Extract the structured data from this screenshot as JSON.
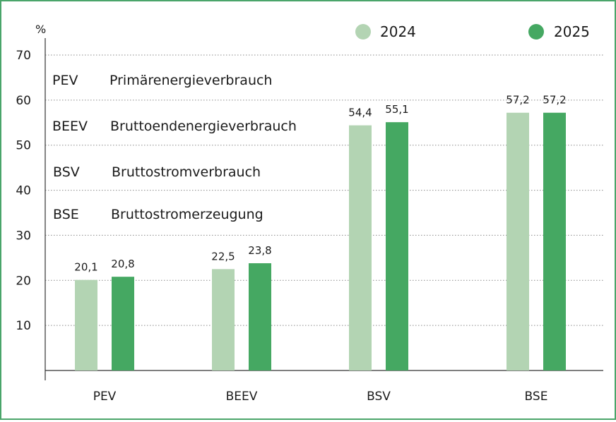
{
  "chart_data": {
    "type": "bar",
    "unit_label": "%",
    "categories": [
      "PEV",
      "BEEV",
      "BSV",
      "BSE"
    ],
    "series": [
      {
        "name": "2024",
        "color": "#b3d4b3",
        "values": [
          20.1,
          22.5,
          54.4,
          57.2
        ],
        "labels": [
          "20,1",
          "22,5",
          "54,4",
          "57,2"
        ]
      },
      {
        "name": "2025",
        "color": "#45a862",
        "values": [
          20.8,
          23.8,
          55.1,
          57.2
        ],
        "labels": [
          "20,8",
          "23,8",
          "55,1",
          "57,2"
        ]
      }
    ],
    "ylim": [
      0,
      70
    ],
    "yticks": [
      10,
      20,
      30,
      40,
      50,
      60,
      70
    ],
    "grid": "horizontal-dotted",
    "legend_position": "top-right",
    "annotations": [
      {
        "abbr": "PEV",
        "text": "Primärenergieverbrauch"
      },
      {
        "abbr": "BEEV",
        "text": "Bruttoendenergieverbrauch"
      },
      {
        "abbr": "BSV",
        "text": "Bruttostromverbrauch"
      },
      {
        "abbr": "BSE",
        "text": "Bruttostromerzeugung"
      }
    ]
  }
}
